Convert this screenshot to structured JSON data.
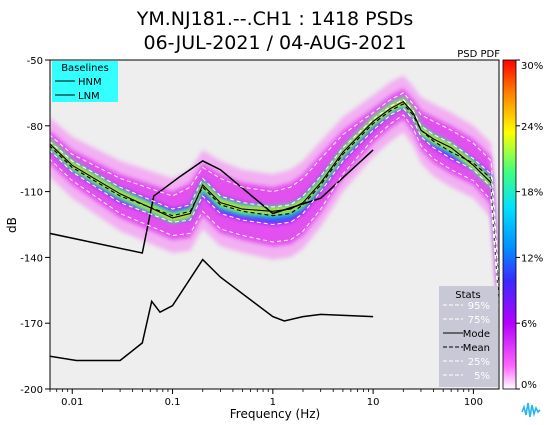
{
  "title": {
    "line1": "YM.NJ181.--.CH1 : 1418 PSDs",
    "line2": "06-JUL-2021 / 04-AUG-2021"
  },
  "colorbar_label": "PSD PDF",
  "chart_data": {
    "type": "heatmap",
    "xlabel": "Frequency (Hz)",
    "ylabel": "dB",
    "xscale": "log",
    "xlim": [
      0.006,
      180
    ],
    "ylim": [
      -200,
      -50
    ],
    "xticks": [
      {
        "v": 0.01,
        "label": "0.01"
      },
      {
        "v": 0.1,
        "label": "0.1"
      },
      {
        "v": 1,
        "label": "1"
      },
      {
        "v": 10,
        "label": "10"
      },
      {
        "v": 100,
        "label": "100"
      }
    ],
    "yticks": [
      {
        "v": -50,
        "label": "-50"
      },
      {
        "v": -80,
        "label": "-80"
      },
      {
        "v": -110,
        "label": "-110"
      },
      {
        "v": -140,
        "label": "-140"
      },
      {
        "v": -170,
        "label": "-170"
      },
      {
        "v": -200,
        "label": "-200"
      }
    ],
    "colorbar": {
      "range": [
        0,
        30
      ],
      "tick_labels": [
        "30%",
        "24%",
        "18%",
        "12%",
        "6%",
        "0%"
      ],
      "tick_values": [
        30,
        24,
        18,
        12,
        6,
        0
      ]
    },
    "legend_baselines": {
      "title": "Baselines",
      "entries": [
        "HNM",
        "LNM"
      ]
    },
    "legend_stats": {
      "title": "Stats",
      "entries": [
        {
          "label": "95%",
          "style": "dashed",
          "color": "#ffffff"
        },
        {
          "label": "75%",
          "style": "dashed",
          "color": "#ffffff"
        },
        {
          "label": "Mode",
          "style": "solid",
          "color": "#000000"
        },
        {
          "label": "Mean",
          "style": "dashed",
          "color": "#000000"
        },
        {
          "label": "25%",
          "style": "dashed",
          "color": "#ffffff"
        },
        {
          "label": "5%",
          "style": "dashed",
          "color": "#ffffff"
        }
      ]
    },
    "series": [
      {
        "name": "HNM",
        "x": [
          0.0059,
          0.05,
          0.065,
          0.12,
          0.2,
          0.3,
          1,
          3,
          10
        ],
        "y": [
          -129,
          -138,
          -112,
          -103,
          -96,
          -100,
          -120,
          -113,
          -91
        ]
      },
      {
        "name": "LNM",
        "x": [
          0.0059,
          0.011,
          0.03,
          0.05,
          0.062,
          0.075,
          0.1,
          0.2,
          0.3,
          1,
          1.3,
          2,
          3,
          10
        ],
        "y": [
          -185,
          -187,
          -187,
          -179,
          -160,
          -165,
          -162,
          -141,
          -149,
          -167,
          -169,
          -167,
          -166,
          -167
        ]
      },
      {
        "name": "Mode",
        "x": [
          0.0059,
          0.01,
          0.03,
          0.1,
          0.15,
          0.2,
          0.3,
          0.5,
          1,
          1.5,
          2,
          3,
          5,
          10,
          15,
          20,
          25,
          30,
          40,
          60,
          100,
          150,
          180
        ],
        "y": [
          -88,
          -98,
          -111,
          -122,
          -120,
          -107,
          -115,
          -118,
          -119,
          -118,
          -115,
          -106,
          -92,
          -78,
          -72,
          -69,
          -74,
          -82,
          -86,
          -90,
          -98,
          -106,
          -158
        ]
      },
      {
        "name": "Mean",
        "x": [
          0.0059,
          0.01,
          0.03,
          0.1,
          0.15,
          0.2,
          0.3,
          0.5,
          1,
          1.5,
          2,
          3,
          5,
          10,
          15,
          20,
          25,
          30,
          40,
          60,
          100,
          150,
          180
        ],
        "y": [
          -89,
          -99,
          -112,
          -121,
          -119,
          -108,
          -116,
          -119,
          -121,
          -120,
          -116,
          -107,
          -93,
          -79,
          -73,
          -70,
          -75,
          -82,
          -87,
          -92,
          -97,
          -104,
          -157
        ]
      },
      {
        "name": "95%",
        "x": [
          0.0059,
          0.01,
          0.03,
          0.1,
          0.15,
          0.2,
          0.3,
          0.5,
          1,
          1.5,
          2,
          3,
          5,
          10,
          15,
          20,
          25,
          30,
          40,
          60,
          100,
          150,
          180
        ],
        "y": [
          -84,
          -93,
          -104,
          -112,
          -108,
          -99,
          -104,
          -108,
          -110,
          -108,
          -104,
          -95,
          -84,
          -74,
          -68,
          -65,
          -70,
          -75,
          -78,
          -82,
          -88,
          -96,
          -150
        ]
      },
      {
        "name": "75%",
        "x": [
          0.0059,
          0.01,
          0.03,
          0.1,
          0.15,
          0.2,
          0.3,
          0.5,
          1,
          1.5,
          2,
          3,
          5,
          10,
          15,
          20,
          25,
          30,
          40,
          60,
          100,
          150,
          180
        ],
        "y": [
          -87,
          -96,
          -108,
          -118,
          -116,
          -104,
          -112,
          -115,
          -117,
          -116,
          -112,
          -103,
          -90,
          -77,
          -71,
          -68,
          -73,
          -80,
          -84,
          -88,
          -95,
          -102,
          -155
        ]
      },
      {
        "name": "25%",
        "x": [
          0.0059,
          0.01,
          0.03,
          0.1,
          0.15,
          0.2,
          0.3,
          0.5,
          1,
          1.5,
          2,
          3,
          5,
          10,
          15,
          20,
          25,
          30,
          40,
          60,
          100,
          150,
          180
        ],
        "y": [
          -91,
          -101,
          -115,
          -124,
          -123,
          -112,
          -120,
          -123,
          -125,
          -124,
          -120,
          -110,
          -96,
          -82,
          -75,
          -72,
          -77,
          -85,
          -90,
          -95,
          -100,
          -108,
          -160
        ]
      },
      {
        "name": "5%",
        "x": [
          0.0059,
          0.01,
          0.03,
          0.1,
          0.15,
          0.2,
          0.3,
          0.5,
          1,
          1.5,
          2,
          3,
          5,
          10,
          15,
          20,
          25,
          30,
          40,
          60,
          100,
          150,
          180
        ],
        "y": [
          -95,
          -105,
          -120,
          -130,
          -129,
          -119,
          -127,
          -130,
          -133,
          -132,
          -128,
          -118,
          -102,
          -86,
          -79,
          -75,
          -81,
          -89,
          -95,
          -100,
          -105,
          -114,
          -165
        ]
      }
    ]
  }
}
